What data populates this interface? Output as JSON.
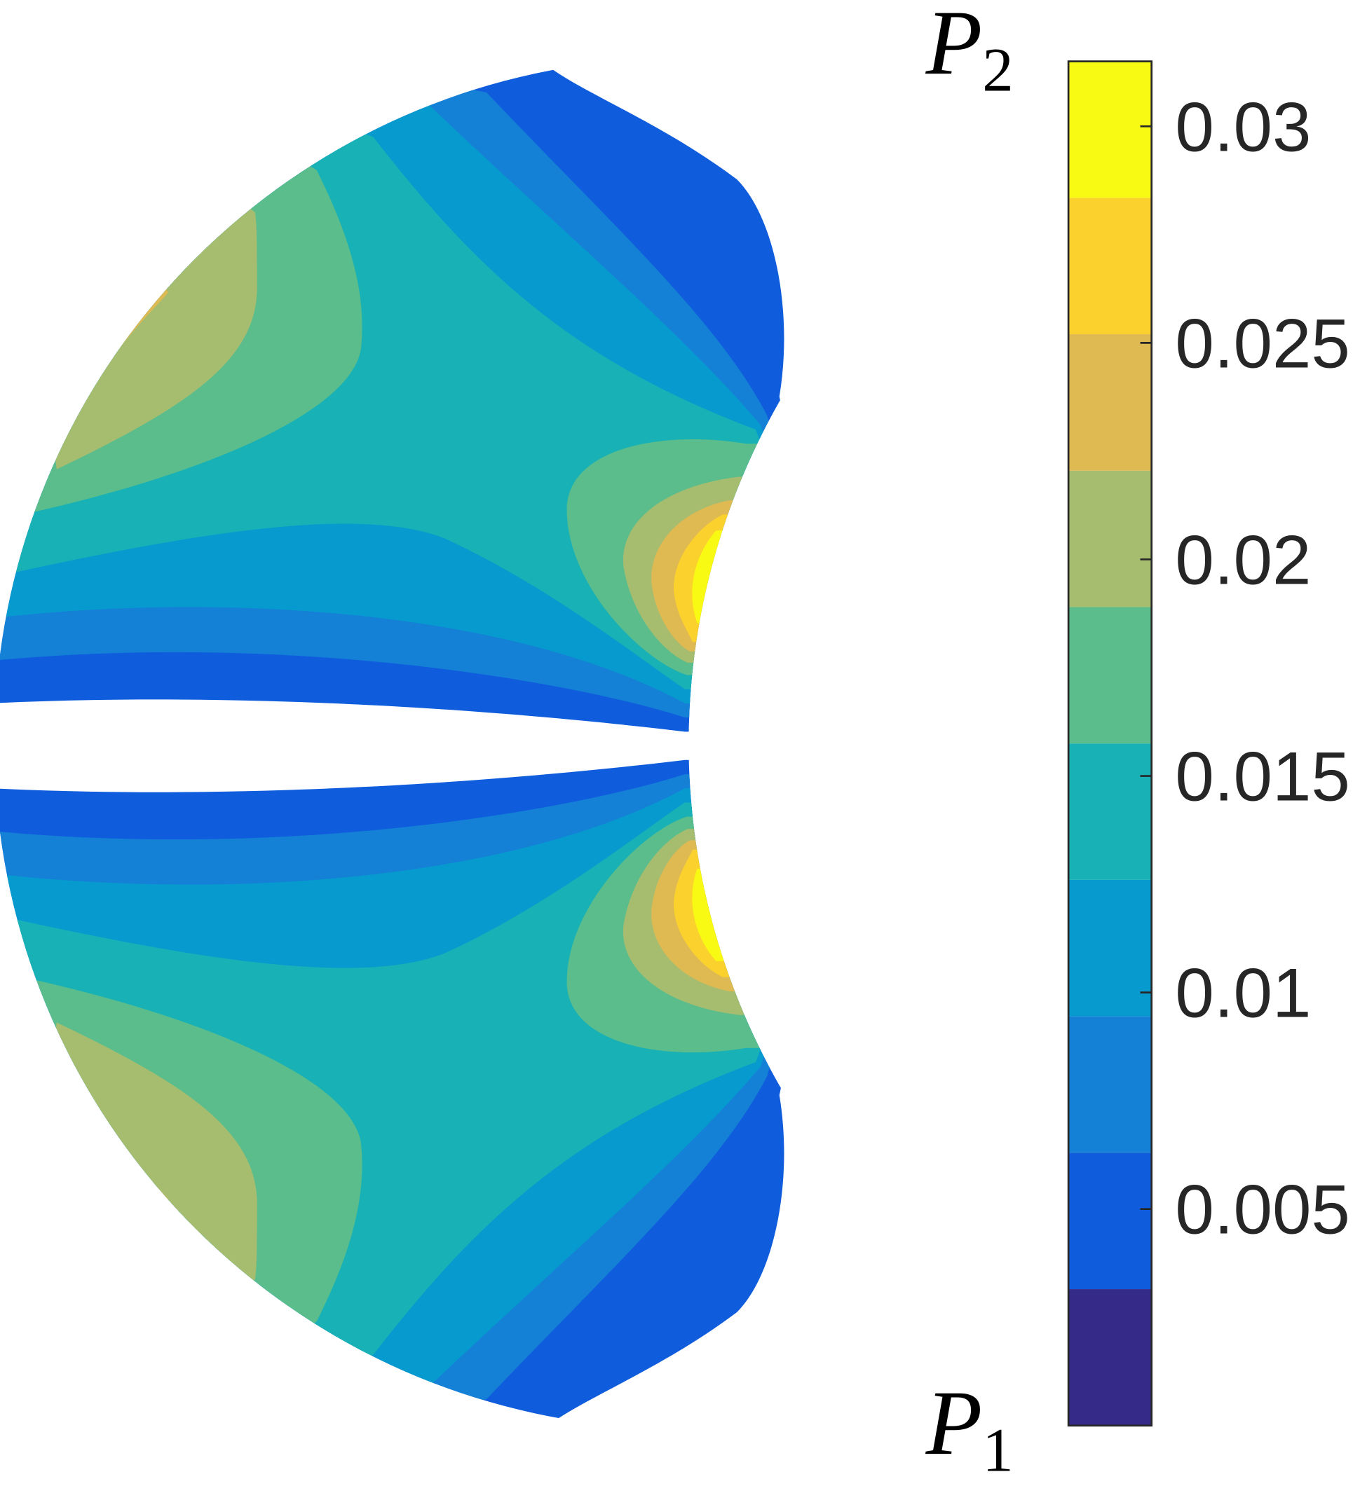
{
  "chart_data": {
    "type": "filled-contour",
    "levels": [
      0,
      0.00315,
      0.0063,
      0.00945,
      0.0126,
      0.01575,
      0.0189,
      0.02205,
      0.0252,
      0.02835,
      0.0315
    ],
    "colors": [
      "#352a87",
      "#0f5cdd",
      "#1481d6",
      "#079ace",
      "#18b1b5",
      "#5cbd8c",
      "#a6bd6f",
      "#dfb952",
      "#fbd12d",
      "#f8fa13"
    ],
    "clim": [
      0,
      0.0315
    ],
    "cticks": [
      0.005,
      0.01,
      0.015,
      0.02,
      0.025,
      0.03
    ],
    "annotations": [
      {
        "text": "P",
        "subscript": "2"
      },
      {
        "text": "P",
        "subscript": "1"
      }
    ]
  }
}
